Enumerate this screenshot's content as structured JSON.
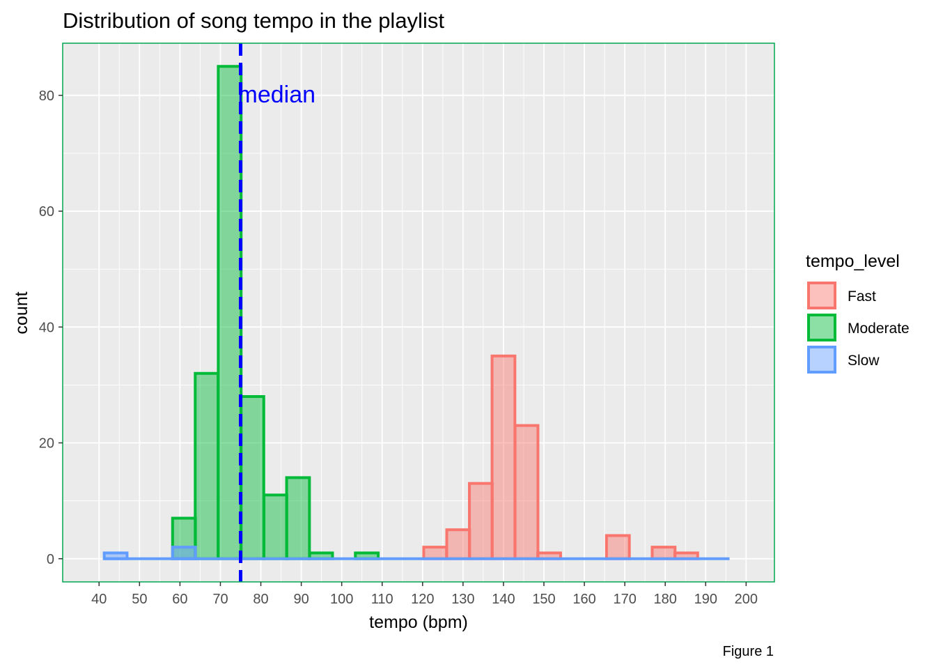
{
  "chart_data": {
    "type": "bar",
    "title": "Distribution of song tempo in the playlist",
    "xlabel": "tempo (bpm)",
    "ylabel": "count",
    "caption": "Figure 1",
    "bin_width": 5.65,
    "xlim": [
      31,
      207
    ],
    "ylim": [
      -4,
      89
    ],
    "x_ticks": [
      40,
      50,
      60,
      70,
      80,
      90,
      100,
      110,
      120,
      130,
      140,
      150,
      160,
      170,
      180,
      190,
      200
    ],
    "y_ticks": [
      0,
      20,
      40,
      60,
      80
    ],
    "grid": true,
    "background_color": "#EBEBEB",
    "legend": {
      "title": "tempo_level",
      "position": "right",
      "entries": [
        "Fast",
        "Moderate",
        "Slow"
      ]
    },
    "series": [
      {
        "name": "Fast",
        "color": "#F8766D",
        "bins": [
          {
            "x": 123.1,
            "count": 2
          },
          {
            "x": 128.8,
            "count": 5
          },
          {
            "x": 134.4,
            "count": 13
          },
          {
            "x": 140.0,
            "count": 35
          },
          {
            "x": 145.7,
            "count": 23
          },
          {
            "x": 151.3,
            "count": 1
          },
          {
            "x": 168.3,
            "count": 4
          },
          {
            "x": 179.6,
            "count": 2
          },
          {
            "x": 185.2,
            "count": 1
          }
        ]
      },
      {
        "name": "Moderate",
        "color": "#00BA38",
        "bins": [
          {
            "x": 61.0,
            "count": 7
          },
          {
            "x": 66.6,
            "count": 32
          },
          {
            "x": 72.3,
            "count": 85
          },
          {
            "x": 77.9,
            "count": 28
          },
          {
            "x": 83.6,
            "count": 11
          },
          {
            "x": 89.2,
            "count": 14
          },
          {
            "x": 94.9,
            "count": 1
          },
          {
            "x": 106.2,
            "count": 1
          }
        ]
      },
      {
        "name": "Slow",
        "color": "#619CFF",
        "bins": [
          {
            "x": 44.1,
            "count": 1
          },
          {
            "x": 61.0,
            "count": 2
          }
        ],
        "zero_range": [
          41.3,
          195.9
        ]
      }
    ],
    "annotations": [
      {
        "type": "vline",
        "x": 75.0,
        "color": "#0000FF",
        "style": "dashed"
      },
      {
        "type": "text",
        "text": "median",
        "x": 75.0,
        "y": 80,
        "color": "#0000FF"
      }
    ]
  }
}
